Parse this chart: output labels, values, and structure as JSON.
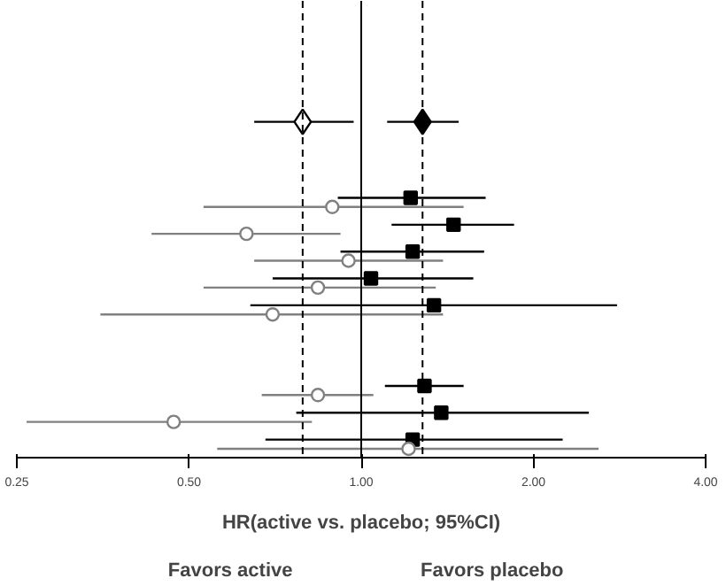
{
  "chart_data": {
    "type": "scatter",
    "orientation": "horizontal",
    "log": "x",
    "grid": false,
    "tick_labels": "x",
    "xlabel": "HR(active vs. placebo; 95%CI)",
    "annotations": [
      "Favors active",
      "Favors placebo"
    ],
    "categories": [
      null,
      null,
      null,
      null,
      null,
      null,
      null,
      null,
      null,
      null,
      null,
      null,
      null,
      null,
      null,
      null,
      null
    ],
    "xlim": [
      0.25,
      4.0
    ],
    "xticks": [
      0.25,
      {
        "value": 0.5,
        "label": "0.50"
      },
      {
        "value": 1.0,
        "label": "1.00"
      },
      {
        "value": 2.0,
        "label": "2.00"
      },
      {
        "value": 4.0,
        "label": "4.00"
      }
    ],
    "ref_lines": [
      {
        "axis": "x",
        "value": 1.0,
        "label": null,
        "line_style": "solid",
        "color": "#000000"
      },
      {
        "axis": "x",
        "value": 0.79,
        "label": null,
        "line_style": "dashed",
        "color": "#000000"
      },
      {
        "axis": "x",
        "value": 1.28,
        "label": null,
        "line_style": "dashed",
        "color": "#000000"
      }
    ],
    "series": [
      {
        "marker": "diamond",
        "color": "#ffffff",
        "values": [
          null,
          null,
          null,
          null,
          0.79,
          null,
          null,
          null,
          null,
          null,
          null,
          null,
          null,
          null,
          null,
          null,
          null
        ],
        "errors": [
          null,
          null,
          null,
          null,
          [
            0.65,
            0.97
          ],
          null,
          null,
          null,
          null,
          null,
          null,
          null,
          null,
          null,
          null,
          null,
          null
        ]
      },
      {
        "marker": "diamond",
        "color": "#000000",
        "values": [
          null,
          null,
          null,
          null,
          1.28,
          null,
          null,
          null,
          null,
          null,
          null,
          null,
          null,
          null,
          null,
          null,
          null
        ],
        "errors": [
          null,
          null,
          null,
          null,
          [
            1.11,
            1.48
          ],
          null,
          null,
          null,
          null,
          null,
          null,
          null,
          null,
          null,
          null,
          null,
          null
        ]
      },
      {
        "marker": "square",
        "color": "#000000",
        "values": [
          null,
          null,
          null,
          null,
          null,
          null,
          null,
          1.22,
          1.45,
          1.23,
          1.04,
          1.34,
          null,
          null,
          1.29,
          1.38,
          1.23
        ],
        "errors": [
          null,
          null,
          null,
          null,
          null,
          null,
          null,
          [
            0.91,
            1.65
          ],
          [
            1.13,
            1.85
          ],
          [
            0.92,
            1.64
          ],
          [
            0.7,
            1.57
          ],
          [
            0.64,
            2.8
          ],
          null,
          null,
          [
            1.1,
            1.51
          ],
          [
            0.77,
            2.5
          ],
          [
            0.68,
            2.25
          ]
        ]
      },
      {
        "marker": "circle",
        "color": "#808080",
        "values": [
          null,
          null,
          null,
          null,
          null,
          null,
          null,
          0.89,
          0.63,
          0.95,
          0.84,
          0.7,
          null,
          null,
          0.84,
          0.47,
          1.21
        ],
        "errors": [
          null,
          null,
          null,
          null,
          null,
          null,
          null,
          [
            0.53,
            1.51
          ],
          [
            0.43,
            0.92
          ],
          [
            0.65,
            1.39
          ],
          [
            0.53,
            1.35
          ],
          [
            0.35,
            1.39
          ],
          null,
          null,
          [
            0.67,
            1.05
          ],
          [
            0.26,
            0.82
          ],
          [
            0.56,
            2.6
          ]
        ]
      }
    ]
  }
}
